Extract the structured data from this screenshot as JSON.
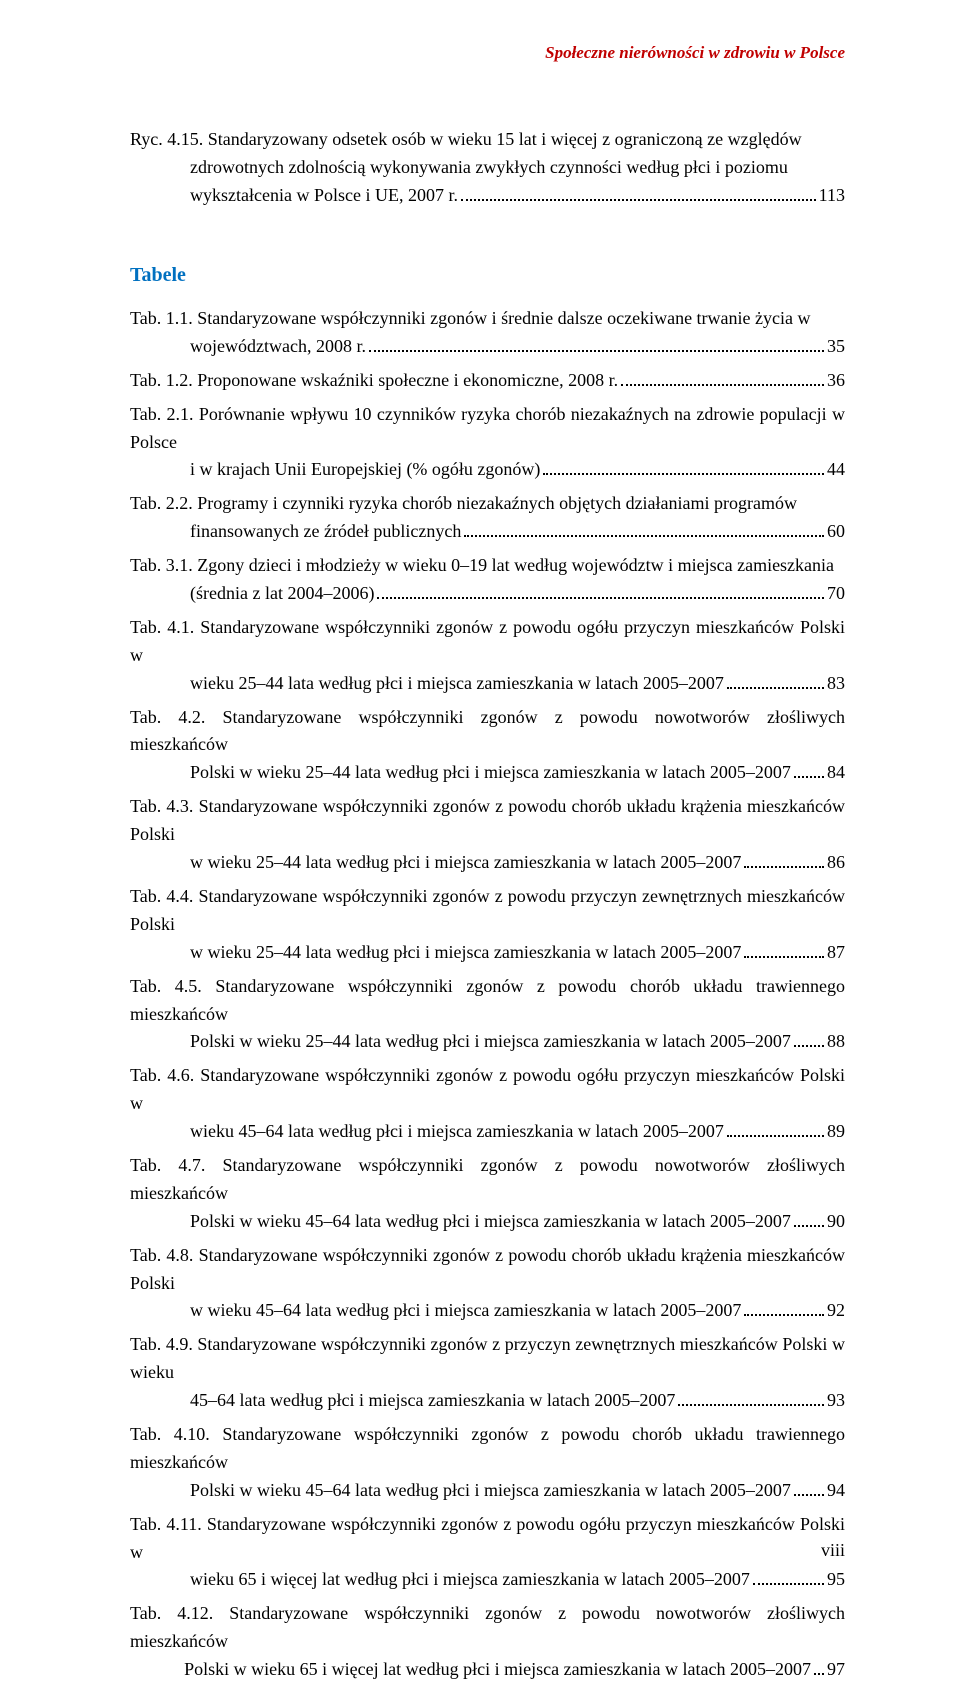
{
  "header": "Społeczne nierówności w zdrowiu w Polsce",
  "colors": {
    "header": "#c00000",
    "section_title": "#0070c0",
    "text": "#000000",
    "background": "#ffffff"
  },
  "section_title": "Tabele",
  "page_number": "viii",
  "ryc": [
    {
      "line1": "Ryc. 4.15. Standaryzowany odsetek osób w wieku 15 lat i więcej z ograniczoną ze względów",
      "line2a": "zdrowotnych zdolnością wykonywania zwykłych czynności według płci i poziomu",
      "line2b": "wykształcenia w Polsce i UE, 2007 r.",
      "page": "113"
    }
  ],
  "tab": [
    {
      "line1": "Tab. 1.1. Standaryzowane współczynniki zgonów i średnie dalsze oczekiwane trwanie życia w",
      "line2": "województwach, 2008 r.",
      "page": "35"
    },
    {
      "single": "Tab. 1.2. Proponowane wskaźniki społeczne i ekonomiczne, 2008 r.",
      "page": "36"
    },
    {
      "line1": "Tab. 2.1. Porównanie wpływu 10 czynników ryzyka chorób niezakaźnych na zdrowie populacji w Polsce",
      "line2": "i w krajach Unii Europejskiej (% ogółu zgonów)",
      "page": "44"
    },
    {
      "line1": "Tab. 2.2. Programy i czynniki ryzyka chorób niezakaźnych objętych działaniami programów",
      "line2": "finansowanych ze źródeł publicznych",
      "page": "60"
    },
    {
      "line1": "Tab. 3.1. Zgony dzieci i młodzieży w wieku 0–19 lat według województw i miejsca zamieszkania",
      "line2": "(średnia z lat 2004–2006)",
      "page": "70"
    },
    {
      "line1": "Tab. 4.1. Standaryzowane współczynniki zgonów z powodu ogółu przyczyn mieszkańców Polski w",
      "line2": "wieku 25–44 lata według płci i miejsca zamieszkania w latach 2005–2007",
      "page": "83"
    },
    {
      "line1": "Tab. 4.2. Standaryzowane współczynniki zgonów z powodu nowotworów złośliwych mieszkańców",
      "line2": "Polski w wieku 25–44 lata według płci i miejsca zamieszkania w latach 2005–2007",
      "page": "84"
    },
    {
      "line1": "Tab. 4.3. Standaryzowane współczynniki zgonów z powodu chorób układu krążenia mieszkańców Polski",
      "line2": "w wieku 25–44 lata według płci i miejsca zamieszkania w latach 2005–2007",
      "page": "86"
    },
    {
      "line1": "Tab. 4.4. Standaryzowane współczynniki zgonów z powodu przyczyn zewnętrznych mieszkańców Polski",
      "line2": "w wieku 25–44 lata według płci i miejsca zamieszkania w latach 2005–2007",
      "page": "87"
    },
    {
      "line1": "Tab. 4.5. Standaryzowane współczynniki zgonów z powodu chorób układu trawiennego mieszkańców",
      "line2": "Polski w wieku 25–44 lata według płci i miejsca zamieszkania w latach 2005–2007",
      "page": "88"
    },
    {
      "line1": "Tab. 4.6. Standaryzowane współczynniki zgonów z powodu ogółu przyczyn mieszkańców Polski w",
      "line2": "wieku 45–64 lata według płci i miejsca zamieszkania w latach 2005–2007",
      "page": "89"
    },
    {
      "line1": "Tab. 4.7. Standaryzowane współczynniki zgonów z powodu nowotworów złośliwych mieszkańców",
      "line2": "Polski w wieku 45–64 lata według płci i miejsca zamieszkania w latach 2005–2007",
      "page": "90"
    },
    {
      "line1": "Tab. 4.8. Standaryzowane współczynniki zgonów z powodu chorób układu krążenia mieszkańców Polski",
      "line2": "w wieku 45–64 lata według płci i miejsca zamieszkania w latach 2005–2007",
      "page": "92"
    },
    {
      "line1": "Tab. 4.9. Standaryzowane współczynniki zgonów z przyczyn zewnętrznych mieszkańców Polski w wieku",
      "line2": "45–64 lata według płci i miejsca zamieszkania w latach 2005–2007",
      "page": "93"
    },
    {
      "line1": "Tab. 4.10. Standaryzowane współczynniki zgonów z powodu chorób układu trawiennego mieszkańców",
      "line2": "Polski w wieku 45–64 lata według płci i miejsca zamieszkania w latach 2005–2007",
      "page": "94"
    },
    {
      "line1": "Tab. 4.11. Standaryzowane współczynniki zgonów z powodu ogółu przyczyn mieszkańców Polski w",
      "line2": "wieku 65 i więcej lat według płci i miejsca zamieszkania w latach 2005–2007",
      "page": "95"
    },
    {
      "line1": "Tab. 4.12. Standaryzowane współczynniki zgonów z powodu nowotworów złośliwych mieszkańców",
      "line2": "Polski w wieku 65 i więcej lat według płci i miejsca zamieszkania w latach 2005–2007",
      "page": "97"
    }
  ]
}
